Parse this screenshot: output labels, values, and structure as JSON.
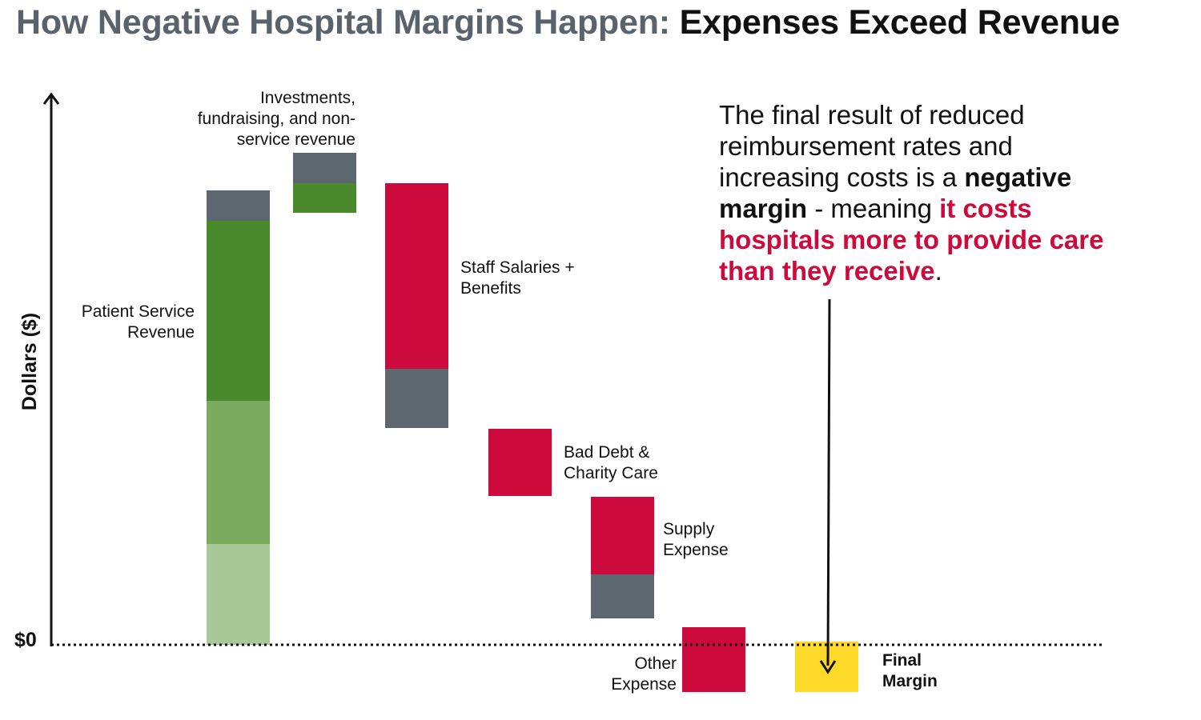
{
  "title": {
    "prefix": "How Negative Hospital Margins Happen: ",
    "emphasis": "Expenses Exceed Revenue"
  },
  "callout": {
    "part1": "The final result of reduced reimbursement rates and increasing costs is a ",
    "bold": "negative margin",
    "part2": " - meaning ",
    "highlight": "it costs hospitals more to provide care than they receive",
    "part3": "."
  },
  "colors": {
    "revenue_dark": "#4a8a2c",
    "revenue_mid": "#7aaa5e",
    "revenue_light": "#a9c898",
    "expense": "#cc0a3b",
    "neutral": "#5d6770",
    "final": "#fdd92a",
    "text_gray": "#5a636c"
  },
  "chart_data": {
    "type": "waterfall",
    "ylabel": "Dollars ($)",
    "zero_label": "$0",
    "ylim": [
      -63,
      690
    ],
    "steps": [
      {
        "label_lines": [
          "Patient Service",
          "Revenue"
        ],
        "label_weight": "normal",
        "segments": [
          {
            "from": 0,
            "to": 126,
            "color": "revenue_light"
          },
          {
            "from": 126,
            "to": 305,
            "color": "revenue_mid"
          },
          {
            "from": 305,
            "to": 530,
            "color": "revenue_dark"
          },
          {
            "from": 530,
            "to": 568,
            "color": "neutral"
          }
        ]
      },
      {
        "label_lines": [
          "Investments,",
          "fundraising, and non-",
          "service revenue"
        ],
        "label_weight": "normal",
        "segments": [
          {
            "from": 540,
            "to": 577,
            "color": "revenue_dark"
          },
          {
            "from": 577,
            "to": 615,
            "color": "neutral"
          }
        ]
      },
      {
        "label_lines": [
          "Staff Salaries +",
          "Benefits"
        ],
        "label_weight": "normal",
        "segments": [
          {
            "from": 271,
            "to": 345,
            "color": "neutral"
          },
          {
            "from": 345,
            "to": 577,
            "color": "expense"
          }
        ]
      },
      {
        "label_lines": [
          "Bad Debt &",
          "Charity Care"
        ],
        "label_weight": "normal",
        "segments": [
          {
            "from": 186,
            "to": 270,
            "color": "expense"
          }
        ]
      },
      {
        "label_lines": [
          "Supply",
          "Expense"
        ],
        "label_weight": "normal",
        "segments": [
          {
            "from": 33,
            "to": 88,
            "color": "neutral"
          },
          {
            "from": 88,
            "to": 185,
            "color": "expense"
          }
        ]
      },
      {
        "label_lines": [
          "Other",
          "Expense"
        ],
        "label_weight": "normal",
        "segments": [
          {
            "from": -59,
            "to": 22,
            "color": "expense"
          }
        ]
      },
      {
        "label_lines": [
          "Final",
          "Margin"
        ],
        "label_weight": "bold",
        "segments": [
          {
            "from": -59,
            "to": 4,
            "color": "final"
          }
        ]
      }
    ]
  }
}
